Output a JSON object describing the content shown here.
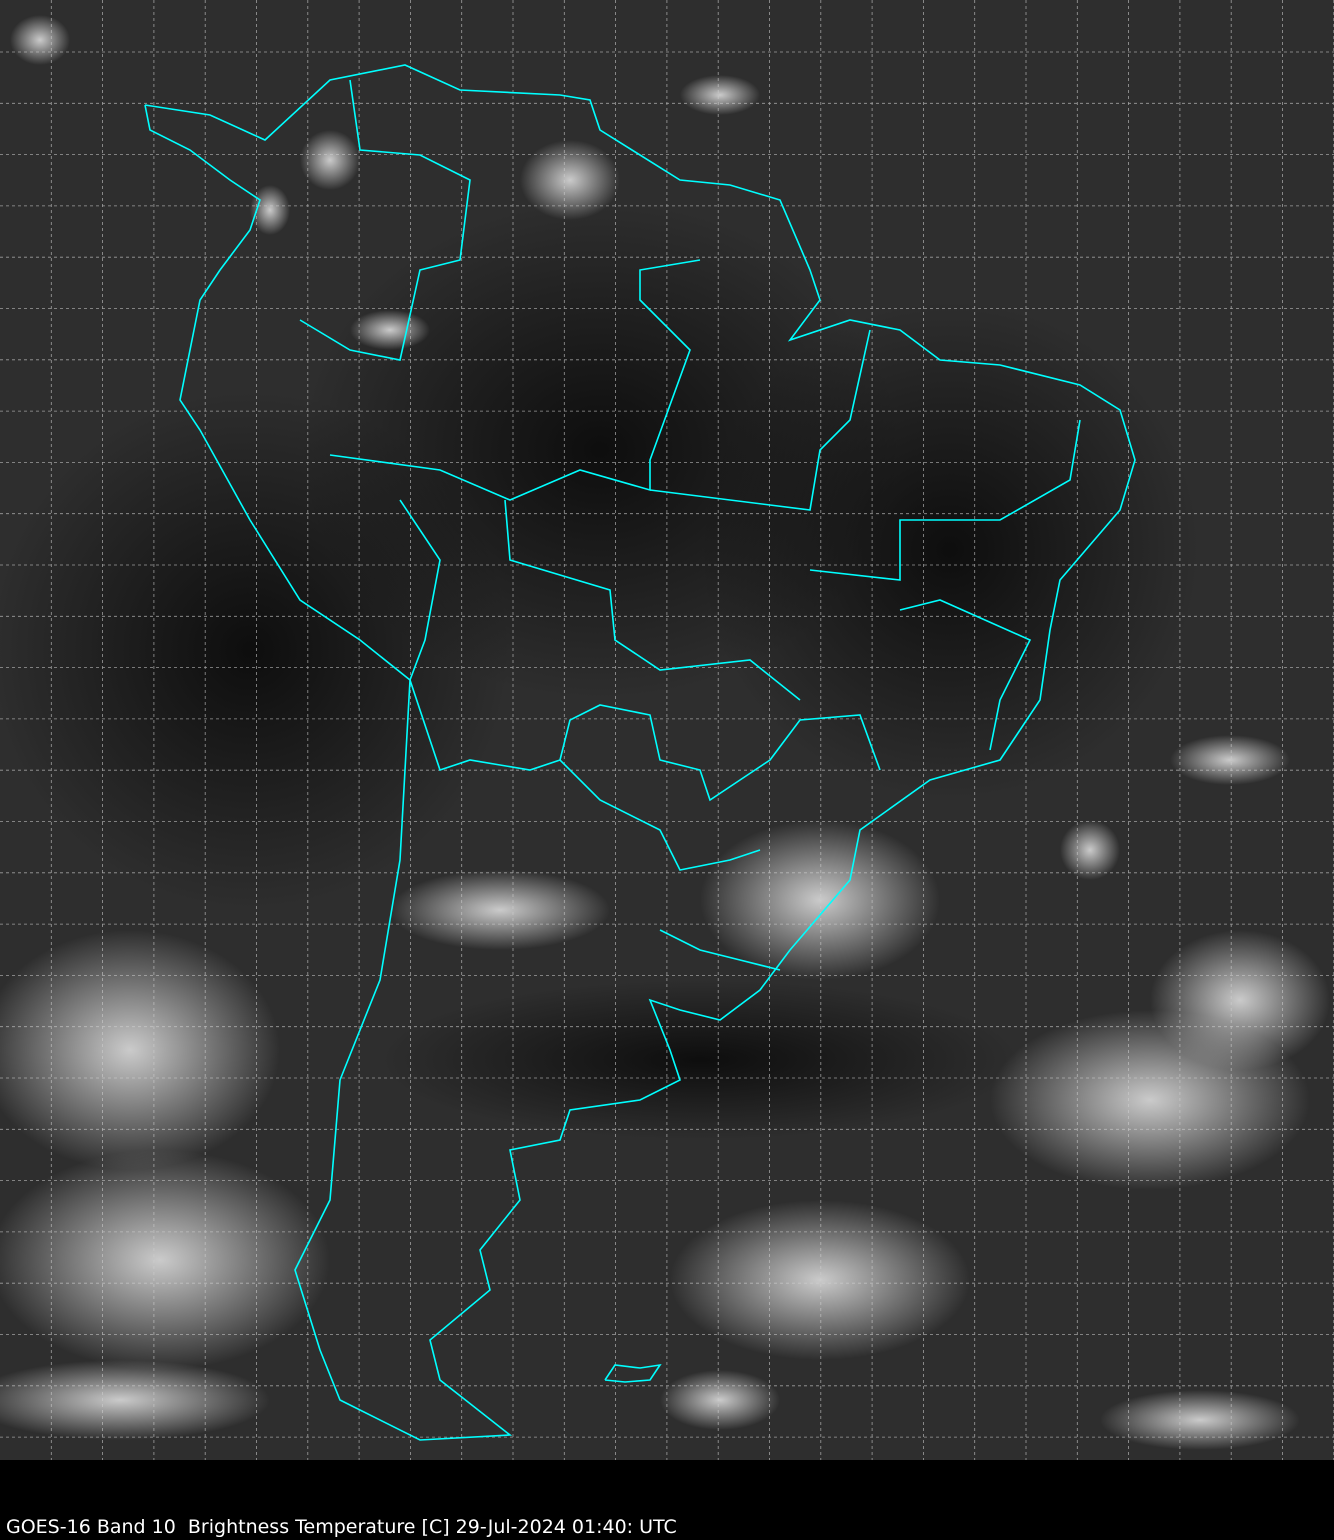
{
  "map": {
    "satellite": "GOES-16",
    "band": "Band 10",
    "quantity": "Brightness Temperature [C]",
    "region": "South America",
    "colormap": "grayscale",
    "border_color": "#00ffff",
    "grid": true
  },
  "caption": {
    "text": "GOES-16 Band 10  Brightness Temperature [C] 29-Jul-2024 01:40: UTC"
  }
}
